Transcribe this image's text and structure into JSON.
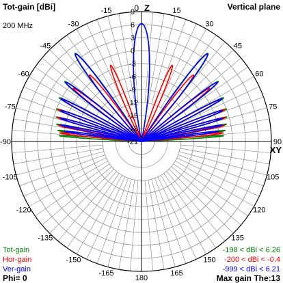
{
  "header": {
    "title": "Tot-gain [dBi]",
    "plane": "Vertical plane",
    "frequency": "200 MHz"
  },
  "footer": {
    "phi": "Phi= 0",
    "max_gain": "Max gain The:13"
  },
  "legend": [
    {
      "name": "Tot-gain",
      "range": "-198 < dBi < 6.26",
      "color": "#008000"
    },
    {
      "name": "Hor-gain",
      "range": "-200 < dBi < -0.4",
      "color": "#ff0000"
    },
    {
      "name": "Ver-gain",
      "range": "-999 < dBi < 6.21",
      "color": "#0000ff"
    }
  ],
  "chart_data": {
    "type": "polar",
    "angle_labels": [
      "0",
      "15",
      "30",
      "45",
      "60",
      "75",
      "90",
      "105",
      "120",
      "135",
      "150",
      "165",
      "180",
      "-165",
      "-150",
      "-135",
      "-120",
      "-105",
      "-90",
      "-75",
      "-60",
      "-45",
      "-30",
      "-15"
    ],
    "axis_labels": {
      "zenith": "Z",
      "horizon": "XY"
    },
    "radial_ticks": [
      "9",
      "6",
      "3",
      "0",
      "-3",
      "-6",
      "-9",
      "-12",
      "-15",
      "-18",
      "-21"
    ],
    "radial_range_dBi": [
      -21,
      9
    ],
    "grid": true,
    "colors": {
      "tot": "#008000",
      "hor": "#ff0000",
      "ver": "#0000ff"
    },
    "series": [
      {
        "name": "Tot-gain",
        "color": "#008000",
        "lobes": [
          {
            "center_deg": 0,
            "halfwidth_deg": 11,
            "peak_dBi": 6.26
          },
          {
            "center_deg": 37,
            "halfwidth_deg": 5,
            "peak_dBi": 4.5
          },
          {
            "center_deg": 52,
            "halfwidth_deg": 3.5,
            "peak_dBi": 1.5
          },
          {
            "center_deg": 62,
            "halfwidth_deg": 2.8,
            "peak_dBi": 0.5
          },
          {
            "center_deg": 69,
            "halfwidth_deg": 2.4,
            "peak_dBi": 0
          },
          {
            "center_deg": 74,
            "halfwidth_deg": 2.1,
            "peak_dBi": -0.5
          },
          {
            "center_deg": 78.5,
            "halfwidth_deg": 1.9,
            "peak_dBi": -1
          },
          {
            "center_deg": 82.5,
            "halfwidth_deg": 1.7,
            "peak_dBi": -1.5
          },
          {
            "center_deg": 86,
            "halfwidth_deg": 1.5,
            "peak_dBi": -2
          },
          {
            "center_deg": -37,
            "halfwidth_deg": 5,
            "peak_dBi": 4.5
          },
          {
            "center_deg": -52,
            "halfwidth_deg": 3.5,
            "peak_dBi": 1.5
          },
          {
            "center_deg": -62,
            "halfwidth_deg": 2.8,
            "peak_dBi": 0.5
          },
          {
            "center_deg": -69,
            "halfwidth_deg": 2.4,
            "peak_dBi": 0
          },
          {
            "center_deg": -74,
            "halfwidth_deg": 2.1,
            "peak_dBi": -0.5
          },
          {
            "center_deg": -78.5,
            "halfwidth_deg": 1.9,
            "peak_dBi": -1
          },
          {
            "center_deg": -82.5,
            "halfwidth_deg": 1.7,
            "peak_dBi": -1.5
          },
          {
            "center_deg": -86,
            "halfwidth_deg": 1.5,
            "peak_dBi": -2
          }
        ]
      },
      {
        "name": "Ver-gain",
        "color": "#0000ff",
        "lobes": [
          {
            "center_deg": 0,
            "halfwidth_deg": 11,
            "peak_dBi": 6.21
          },
          {
            "center_deg": 37,
            "halfwidth_deg": 4.6,
            "peak_dBi": 4.3
          },
          {
            "center_deg": 52,
            "halfwidth_deg": 3.2,
            "peak_dBi": 1.2
          },
          {
            "center_deg": 62,
            "halfwidth_deg": 2.5,
            "peak_dBi": 0
          },
          {
            "center_deg": 69,
            "halfwidth_deg": 2.2,
            "peak_dBi": -1
          },
          {
            "center_deg": 74,
            "halfwidth_deg": 1.9,
            "peak_dBi": -1.5
          },
          {
            "center_deg": 78.5,
            "halfwidth_deg": 1.7,
            "peak_dBi": -2
          },
          {
            "center_deg": 82.5,
            "halfwidth_deg": 1.5,
            "peak_dBi": -3
          },
          {
            "center_deg": -37,
            "halfwidth_deg": 4.6,
            "peak_dBi": 4.3
          },
          {
            "center_deg": -52,
            "halfwidth_deg": 3.2,
            "peak_dBi": 1.2
          },
          {
            "center_deg": -62,
            "halfwidth_deg": 2.5,
            "peak_dBi": 0
          },
          {
            "center_deg": -69,
            "halfwidth_deg": 2.2,
            "peak_dBi": -1
          },
          {
            "center_deg": -74,
            "halfwidth_deg": 1.9,
            "peak_dBi": -1.5
          },
          {
            "center_deg": -78.5,
            "halfwidth_deg": 1.7,
            "peak_dBi": -2
          },
          {
            "center_deg": -82.5,
            "halfwidth_deg": 1.5,
            "peak_dBi": -3
          }
        ]
      },
      {
        "name": "Hor-gain",
        "color": "#ff0000",
        "lobes": [
          {
            "center_deg": 22,
            "halfwidth_deg": 4,
            "peak_dBi": -2
          },
          {
            "center_deg": 38,
            "halfwidth_deg": 4,
            "peak_dBi": -1.5
          },
          {
            "center_deg": 52,
            "halfwidth_deg": 3,
            "peak_dBi": -1
          },
          {
            "center_deg": 62,
            "halfwidth_deg": 2.5,
            "peak_dBi": -0.5
          },
          {
            "center_deg": 69,
            "halfwidth_deg": 2.2,
            "peak_dBi": -0.4
          },
          {
            "center_deg": 74,
            "halfwidth_deg": 1.9,
            "peak_dBi": -0.8
          },
          {
            "center_deg": 79,
            "halfwidth_deg": 1.7,
            "peak_dBi": -1.5
          },
          {
            "center_deg": 84,
            "halfwidth_deg": 1.6,
            "peak_dBi": -2
          },
          {
            "center_deg": -22,
            "halfwidth_deg": 4,
            "peak_dBi": -2
          },
          {
            "center_deg": -38,
            "halfwidth_deg": 4,
            "peak_dBi": -1.5
          },
          {
            "center_deg": -52,
            "halfwidth_deg": 3,
            "peak_dBi": -1
          },
          {
            "center_deg": -62,
            "halfwidth_deg": 2.5,
            "peak_dBi": -0.5
          },
          {
            "center_deg": -69,
            "halfwidth_deg": 2.2,
            "peak_dBi": -0.4
          },
          {
            "center_deg": -74,
            "halfwidth_deg": 1.9,
            "peak_dBi": -0.8
          },
          {
            "center_deg": -79,
            "halfwidth_deg": 1.7,
            "peak_dBi": -1.5
          },
          {
            "center_deg": -84,
            "halfwidth_deg": 1.6,
            "peak_dBi": -2
          }
        ]
      }
    ]
  }
}
